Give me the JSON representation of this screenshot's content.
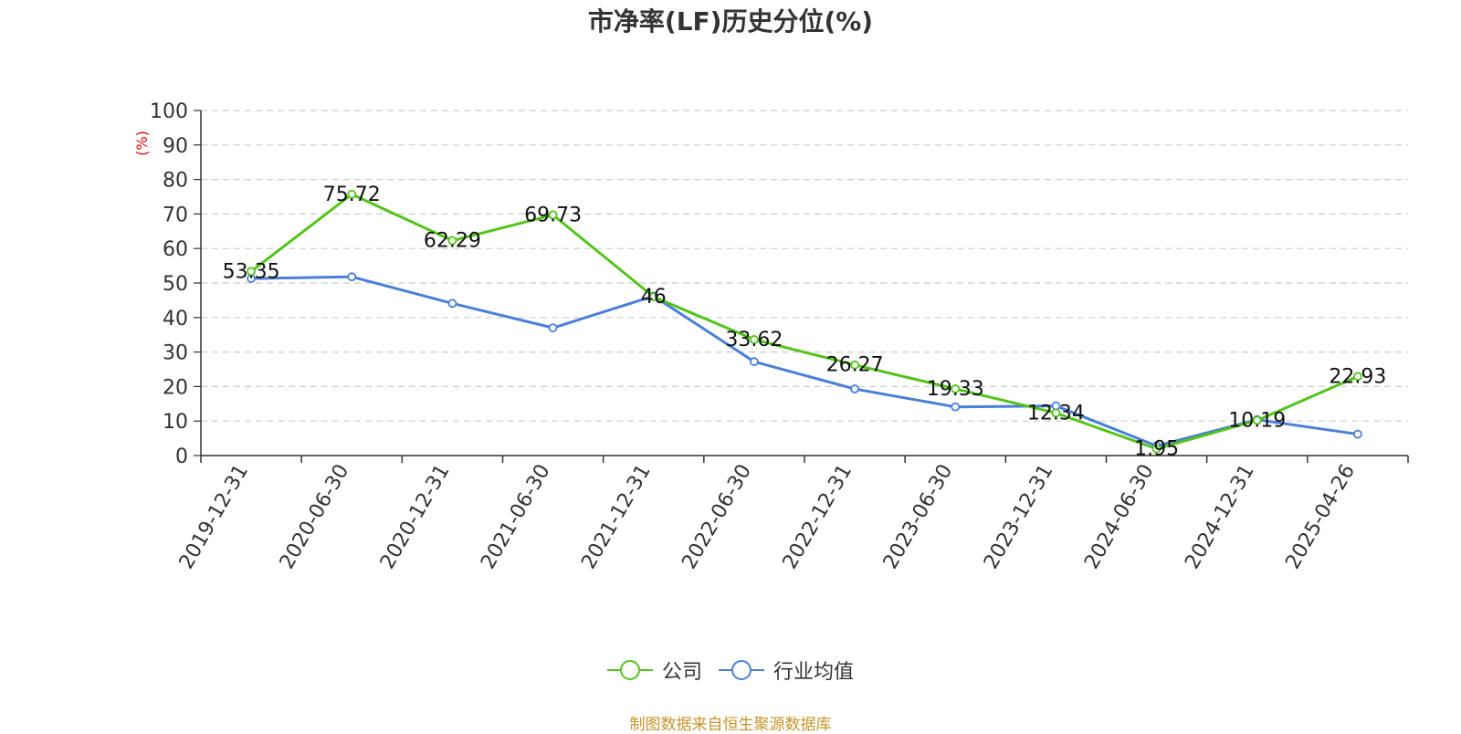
{
  "chart_data": {
    "type": "line",
    "title": "市净率(LF)历史分位(%)",
    "ylabel": "(%)",
    "xlabel": "",
    "ylim": [
      0,
      100
    ],
    "y_ticks": [
      0,
      10,
      20,
      30,
      40,
      50,
      60,
      70,
      80,
      90,
      100
    ],
    "grid": true,
    "legend_position": "bottom",
    "categories": [
      "2019-12-31",
      "2020-06-30",
      "2020-12-31",
      "2021-06-30",
      "2021-12-31",
      "2022-06-30",
      "2022-12-31",
      "2023-06-30",
      "2023-12-31",
      "2024-06-30",
      "2024-12-31",
      "2025-04-26"
    ],
    "series": [
      {
        "name": "公司",
        "color": "#52c41a",
        "values": [
          53.35,
          75.72,
          62.29,
          69.73,
          46,
          33.62,
          26.27,
          19.33,
          12.34,
          1.95,
          10.19,
          22.93
        ]
      },
      {
        "name": "行业均值",
        "color": "#4a7fd9",
        "values": [
          51.3,
          51.8,
          44.1,
          37.0,
          46.2,
          27.2,
          19.3,
          14.1,
          14.4,
          2.8,
          10.4,
          6.2
        ]
      }
    ],
    "data_labels_series": 0,
    "source": "制图数据来自恒生聚源数据库"
  }
}
